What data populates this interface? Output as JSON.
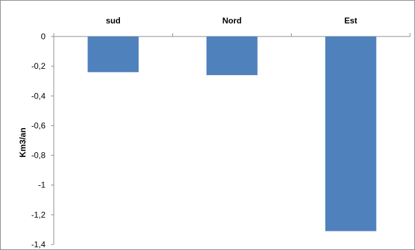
{
  "chart_data": {
    "type": "bar",
    "categories": [
      "sud",
      "Nord",
      "Est"
    ],
    "values": [
      -0.24,
      -0.26,
      -1.31
    ],
    "ylabel": "Km3/an",
    "xlabel": "",
    "ylim": [
      -1.4,
      0
    ],
    "yticks": [
      0,
      -0.2,
      -0.4,
      -0.6,
      -0.8,
      -1,
      -1.2,
      -1.4
    ],
    "ytick_labels": [
      "0",
      "-0,2",
      "-0,4",
      "-0,6",
      "-0,8",
      "-1",
      "-1,2",
      "-1,4"
    ],
    "category_axis_position": "top",
    "grid": false,
    "legend": "none",
    "bar_color": "#4f81bd"
  }
}
